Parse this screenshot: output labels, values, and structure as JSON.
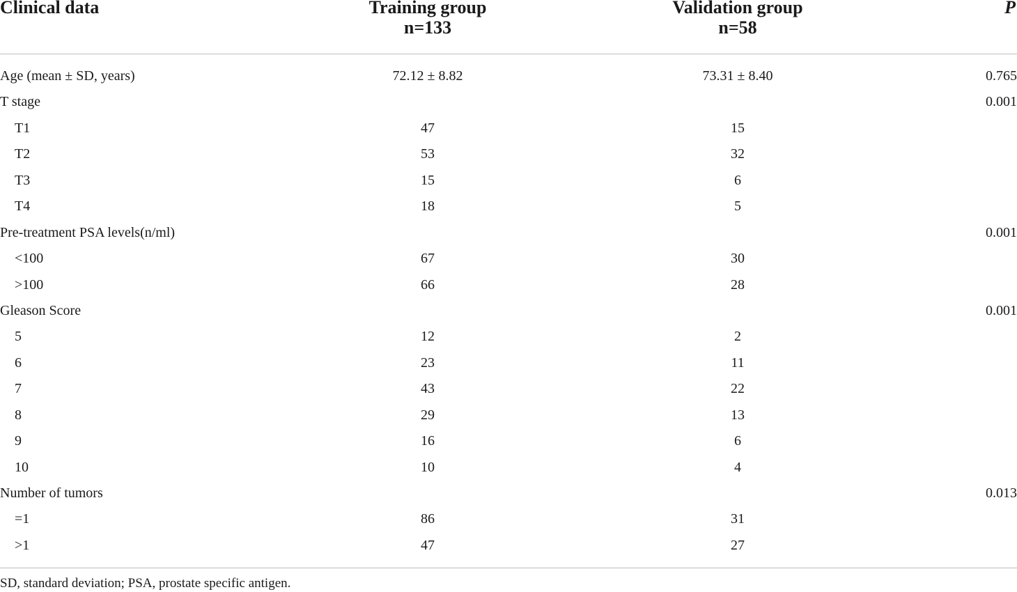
{
  "table": {
    "headers": {
      "col0": "Clinical data",
      "col1_line1": "Training group",
      "col1_line2": "n=133",
      "col2_line1": "Validation group",
      "col2_line2": "n=58",
      "col3": "P"
    },
    "rows": [
      {
        "label": "Age (mean ± SD, years)",
        "indent": false,
        "training": "72.12 ± 8.82",
        "validation": "73.31 ± 8.40",
        "p": "0.765"
      },
      {
        "label": "T stage",
        "indent": false,
        "training": "",
        "validation": "",
        "p": "0.001"
      },
      {
        "label": "T1",
        "indent": true,
        "training": "47",
        "validation": "15",
        "p": ""
      },
      {
        "label": "T2",
        "indent": true,
        "training": "53",
        "validation": "32",
        "p": ""
      },
      {
        "label": "T3",
        "indent": true,
        "training": "15",
        "validation": "6",
        "p": ""
      },
      {
        "label": "T4",
        "indent": true,
        "training": "18",
        "validation": "5",
        "p": ""
      },
      {
        "label": "Pre-treatment PSA levels(n/ml)",
        "indent": false,
        "training": "",
        "validation": "",
        "p": "0.001"
      },
      {
        "label": "<100",
        "indent": true,
        "training": "67",
        "validation": "30",
        "p": ""
      },
      {
        "label": ">100",
        "indent": true,
        "training": "66",
        "validation": "28",
        "p": ""
      },
      {
        "label": "Gleason Score",
        "indent": false,
        "training": "",
        "validation": "",
        "p": "0.001"
      },
      {
        "label": "5",
        "indent": true,
        "training": "12",
        "validation": "2",
        "p": ""
      },
      {
        "label": "6",
        "indent": true,
        "training": "23",
        "validation": "11",
        "p": ""
      },
      {
        "label": "7",
        "indent": true,
        "training": "43",
        "validation": "22",
        "p": ""
      },
      {
        "label": "8",
        "indent": true,
        "training": "29",
        "validation": "13",
        "p": ""
      },
      {
        "label": "9",
        "indent": true,
        "training": "16",
        "validation": "6",
        "p": ""
      },
      {
        "label": "10",
        "indent": true,
        "training": "10",
        "validation": "4",
        "p": ""
      },
      {
        "label": "Number of tumors",
        "indent": false,
        "training": "",
        "validation": "",
        "p": "0.013"
      },
      {
        "label": "=1",
        "indent": true,
        "training": "86",
        "validation": "31",
        "p": ""
      },
      {
        "label": ">1",
        "indent": true,
        "training": "47",
        "validation": "27",
        "p": ""
      }
    ],
    "footnote": "SD, standard deviation; PSA, prostate specific antigen."
  }
}
